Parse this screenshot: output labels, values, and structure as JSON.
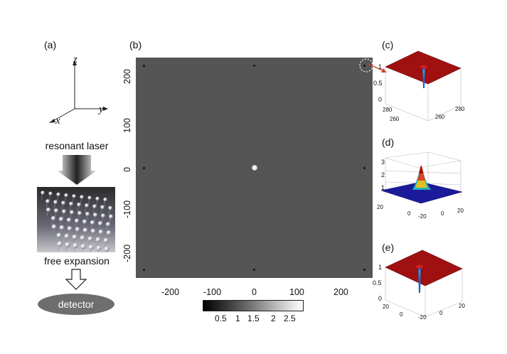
{
  "panel_labels": [
    "(a)",
    "(b)",
    "(c)",
    "(d)",
    "(e)"
  ],
  "axes_a": {
    "z": "z",
    "y": "y",
    "x": "x"
  },
  "schematic": {
    "step1": "resonant laser",
    "step2": "free expansion",
    "detector": "detector"
  },
  "colors": {
    "plot_bg": "#555555",
    "surface_red": "#a01010",
    "surface_blue": "#1a1a9a",
    "arrow": "#d04020"
  },
  "chart_data": [
    {
      "type": "heatmap",
      "panel": "(b)",
      "title": "",
      "xlabel": "",
      "ylabel": "",
      "xlim": [
        -280,
        280
      ],
      "ylim": [
        -280,
        280
      ],
      "xticks": [
        -200,
        -100,
        0,
        100,
        200
      ],
      "yticks": [
        -200,
        -100,
        0,
        100,
        200
      ],
      "bright_spots": [
        {
          "x": 0,
          "y": 0,
          "value": 2.7
        }
      ],
      "dark_spots": [
        {
          "x": -260,
          "y": 260
        },
        {
          "x": 0,
          "y": 260
        },
        {
          "x": 260,
          "y": 260
        },
        {
          "x": -260,
          "y": 0
        },
        {
          "x": 260,
          "y": 0
        },
        {
          "x": -260,
          "y": -260
        },
        {
          "x": 0,
          "y": -260
        },
        {
          "x": 260,
          "y": -260
        }
      ],
      "background_value": 1.0,
      "colorbar": {
        "ticks": [
          "0.5",
          "1",
          "1.5",
          "2",
          "2.5"
        ],
        "range": [
          0.2,
          2.8
        ]
      }
    },
    {
      "type": "area",
      "panel": "(c)",
      "zticks": [
        "0",
        "0.5",
        "1"
      ],
      "xticks": [
        "260",
        "280"
      ],
      "yticks": [
        "260",
        "280",
        "280"
      ]
    },
    {
      "type": "area",
      "panel": "(d)",
      "zticks": [
        "1",
        "2",
        "3"
      ],
      "xticks": [
        "20",
        "0",
        "-20"
      ],
      "yticks": [
        "-20",
        "0",
        "20"
      ]
    },
    {
      "type": "area",
      "panel": "(e)",
      "zticks": [
        "0",
        "0.5",
        "1"
      ],
      "xticks": [
        "20",
        "0",
        "-20"
      ],
      "yticks": [
        "-20",
        "0",
        "20"
      ]
    }
  ]
}
